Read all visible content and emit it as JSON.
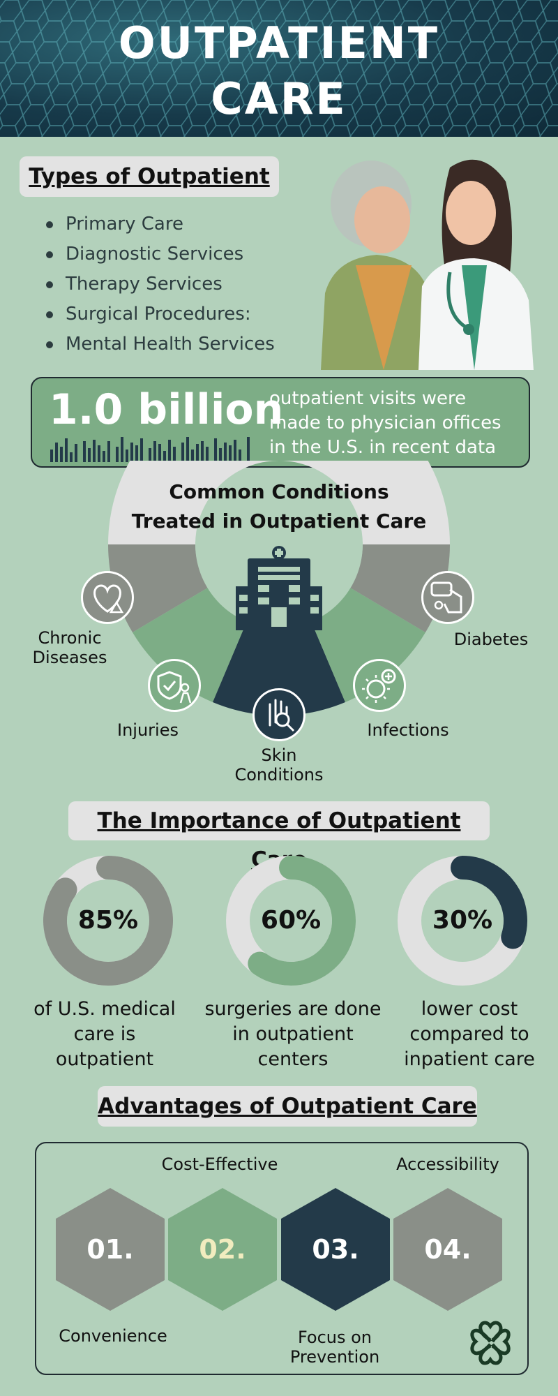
{
  "header": {
    "title_line1": "OUTPATIENT",
    "title_line2": "CARE"
  },
  "types": {
    "title": "Types of Outpatient ",
    "items": [
      "Primary Care",
      "Diagnostic Services",
      "Therapy Services",
      "Surgical Procedures:",
      "Mental Health Services"
    ]
  },
  "stat": {
    "value": "1.0 billion",
    "description": "outpatient visits were made to physician offices in the U.S. in recent data"
  },
  "conditions": {
    "title_line1": "Common Conditions",
    "title_line2": "Treated in Outpatient Care",
    "chronic_line1": "Chronic",
    "chronic_line2": "Diseases",
    "injuries": "Injuries",
    "skin_line1": "Skin",
    "skin_line2": "Conditions",
    "infections": "Infections",
    "diabetes": "Diabetes"
  },
  "importance": {
    "title": "The Importance of Outpatient Care",
    "stats": [
      {
        "value": "85%",
        "fraction": 0.85,
        "color": "#8a8f88",
        "caption_l1": "of U.S. medical",
        "caption_l2": "care is",
        "caption_l3": "outpatient"
      },
      {
        "value": "60%",
        "fraction": 0.6,
        "color": "#7dad86",
        "caption_l1": "surgeries are done",
        "caption_l2": "in outpatient",
        "caption_l3": "centers"
      },
      {
        "value": "30%",
        "fraction": 0.3,
        "color": "#233a49",
        "caption_l1": "lower cost",
        "caption_l2": "compared to",
        "caption_l3": "inpatient care"
      }
    ]
  },
  "advantages": {
    "title": "Advantages of Outpatient Care",
    "hexes": [
      "01.",
      "02.",
      "03.",
      "04."
    ],
    "cost_effective": "Cost-Effective",
    "accessibility": "Accessibility",
    "convenience": "Convenience",
    "prevention_l1": "Focus on",
    "prevention_l2": "Prevention"
  },
  "colors": {
    "dark_navy": "#233a49",
    "green": "#7dad86",
    "gray": "#8a8f88",
    "background": "#b3d1bb",
    "hex2_text": "#f1ecbf"
  }
}
